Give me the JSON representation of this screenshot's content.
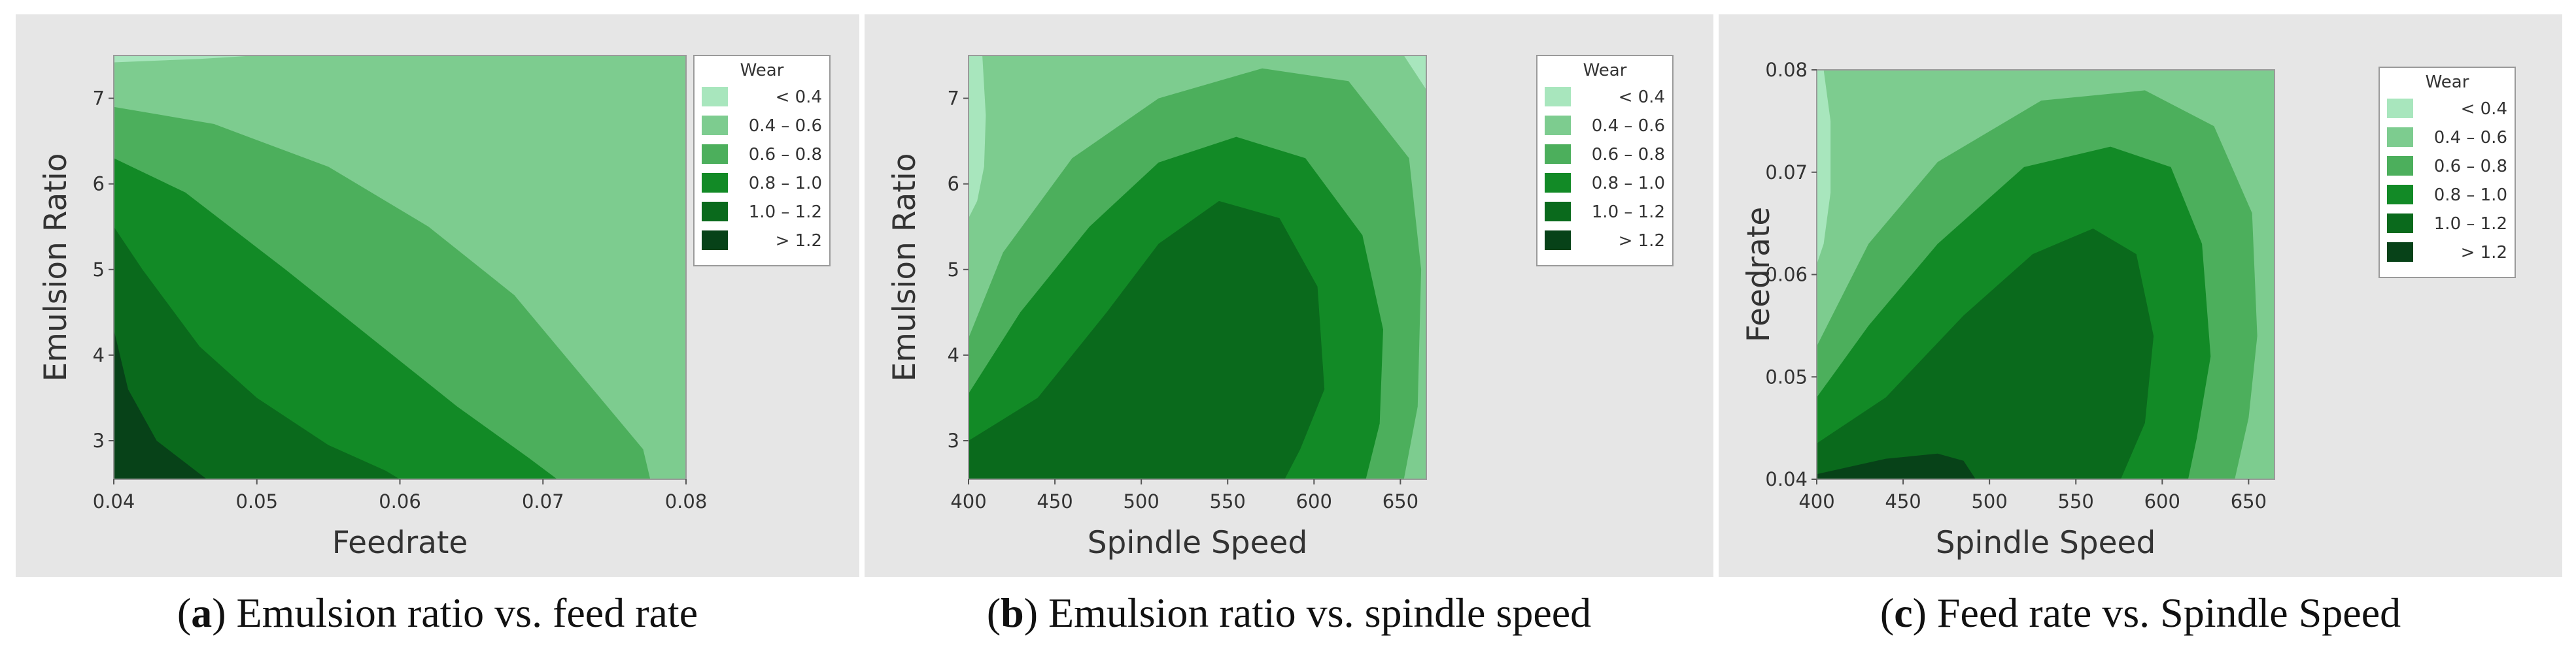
{
  "colors": {
    "lt04": "#a8e6bd",
    "b04_06": "#7dcc8f",
    "b06_08": "#4caf5c",
    "b08_10": "#128a26",
    "b10_12": "#0a6a1c",
    "gt12": "#074218",
    "panel_bg": "#e6e6e6"
  },
  "chart_data": [
    {
      "type": "contour",
      "panel_id": "a",
      "caption_letter": "a",
      "caption_text": ") Emulsion ratio vs. feed rate",
      "xlabel": "Feedrate",
      "ylabel": "Emulsion Ratio",
      "xlim": [
        0.04,
        0.08
      ],
      "ylim": [
        2.55,
        7.5
      ],
      "xticks": [
        "0.04",
        "0.05",
        "0.06",
        "0.07",
        "0.08"
      ],
      "yticks": [
        "3",
        "4",
        "5",
        "6",
        "7"
      ],
      "legend_title": "Wear",
      "legend_items": [
        "< 0.4",
        "0.4 – 0.6",
        "0.6 – 0.8",
        "0.8 – 1.0",
        "1.0 – 1.2",
        "> 1.2"
      ],
      "legend_placement": "right",
      "background_level": "0.4 – 0.6",
      "regions": [
        {
          "level": "< 0.4",
          "boundary": [
            [
              0.04,
              7.5
            ],
            [
              0.04,
              7.42
            ],
            [
              0.046,
              7.46
            ],
            [
              0.05,
              7.5
            ]
          ]
        },
        {
          "level": "0.6 – 0.8",
          "boundary": [
            [
              0.04,
              6.9
            ],
            [
              0.047,
              6.7
            ],
            [
              0.055,
              6.2
            ],
            [
              0.062,
              5.5
            ],
            [
              0.068,
              4.7
            ],
            [
              0.073,
              3.7
            ],
            [
              0.077,
              2.9
            ],
            [
              0.0775,
              2.55
            ],
            [
              0.04,
              2.55
            ]
          ]
        },
        {
          "level": "0.8 – 1.0",
          "boundary": [
            [
              0.04,
              6.3
            ],
            [
              0.045,
              5.9
            ],
            [
              0.052,
              5.0
            ],
            [
              0.058,
              4.2
            ],
            [
              0.064,
              3.4
            ],
            [
              0.069,
              2.8
            ],
            [
              0.071,
              2.55
            ],
            [
              0.04,
              2.55
            ]
          ]
        },
        {
          "level": "1.0 – 1.2",
          "boundary": [
            [
              0.04,
              5.5
            ],
            [
              0.042,
              5.0
            ],
            [
              0.046,
              4.1
            ],
            [
              0.05,
              3.5
            ],
            [
              0.055,
              2.95
            ],
            [
              0.059,
              2.65
            ],
            [
              0.06,
              2.55
            ],
            [
              0.04,
              2.55
            ]
          ]
        },
        {
          "level": "> 1.2",
          "boundary": [
            [
              0.04,
              4.3
            ],
            [
              0.041,
              3.6
            ],
            [
              0.043,
              3.0
            ],
            [
              0.0465,
              2.55
            ],
            [
              0.04,
              2.55
            ]
          ]
        }
      ]
    },
    {
      "type": "contour",
      "panel_id": "b",
      "caption_letter": "b",
      "caption_text": ") Emulsion ratio vs. spindle speed",
      "xlabel": "Spindle Speed",
      "ylabel": "Emulsion Ratio",
      "xlim": [
        400,
        665
      ],
      "ylim": [
        2.55,
        7.5
      ],
      "xticks": [
        "400",
        "450",
        "500",
        "550",
        "600",
        "650"
      ],
      "yticks": [
        "3",
        "4",
        "5",
        "6",
        "7"
      ],
      "legend_title": "Wear",
      "legend_items": [
        "< 0.4",
        "0.4 – 0.6",
        "0.6 – 0.8",
        "0.8 – 1.0",
        "1.0 – 1.2",
        "> 1.2"
      ],
      "legend_placement": "right",
      "background_level": "0.4 – 0.6",
      "regions": [
        {
          "level": "< 0.4",
          "boundary": [
            [
              400,
              7.5
            ],
            [
              408,
              7.5
            ],
            [
              410,
              6.8
            ],
            [
              409,
              6.2
            ],
            [
              405,
              5.8
            ],
            [
              400,
              5.6
            ]
          ]
        },
        {
          "level": "< 0.4",
          "boundary": [
            [
              652,
              7.5
            ],
            [
              665,
              7.5
            ],
            [
              665,
              7.1
            ]
          ]
        },
        {
          "level": "0.6 – 0.8",
          "boundary": [
            [
              400,
              4.2
            ],
            [
              420,
              5.2
            ],
            [
              460,
              6.3
            ],
            [
              510,
              7.0
            ],
            [
              570,
              7.35
            ],
            [
              620,
              7.2
            ],
            [
              655,
              6.3
            ],
            [
              662,
              5.0
            ],
            [
              660,
              3.4
            ],
            [
              652,
              2.55
            ],
            [
              400,
              2.55
            ]
          ]
        },
        {
          "level": "0.8 – 1.0",
          "boundary": [
            [
              400,
              3.55
            ],
            [
              430,
              4.5
            ],
            [
              470,
              5.5
            ],
            [
              510,
              6.25
            ],
            [
              555,
              6.55
            ],
            [
              595,
              6.3
            ],
            [
              628,
              5.4
            ],
            [
              640,
              4.3
            ],
            [
              638,
              3.2
            ],
            [
              630,
              2.55
            ],
            [
              400,
              2.55
            ]
          ]
        },
        {
          "level": "1.0 – 1.2",
          "boundary": [
            [
              400,
              3.0
            ],
            [
              440,
              3.5
            ],
            [
              480,
              4.5
            ],
            [
              510,
              5.3
            ],
            [
              545,
              5.8
            ],
            [
              580,
              5.6
            ],
            [
              602,
              4.8
            ],
            [
              606,
              3.6
            ],
            [
              592,
              2.9
            ],
            [
              583,
              2.55
            ],
            [
              400,
              2.55
            ]
          ]
        }
      ]
    },
    {
      "type": "contour",
      "panel_id": "c",
      "caption_letter": "c",
      "caption_text": ") Feed rate vs. Spindle Speed",
      "xlabel": "Spindle Speed",
      "ylabel": "Feedrate",
      "xlim": [
        400,
        665
      ],
      "ylim": [
        0.04,
        0.08
      ],
      "xticks": [
        "400",
        "450",
        "500",
        "550",
        "600",
        "650"
      ],
      "yticks": [
        "0.04",
        "0.05",
        "0.06",
        "0.07",
        "0.08"
      ],
      "legend_title": "Wear",
      "legend_items": [
        "< 0.4",
        "0.4 – 0.6",
        "0.6 – 0.8",
        "0.8 – 1.0",
        "1.0 – 1.2",
        "> 1.2"
      ],
      "legend_placement": "right",
      "background_level": "0.4 – 0.6",
      "regions": [
        {
          "level": "< 0.4",
          "boundary": [
            [
              400,
              0.08
            ],
            [
              404,
              0.08
            ],
            [
              408,
              0.075
            ],
            [
              408,
              0.068
            ],
            [
              404,
              0.063
            ],
            [
              400,
              0.061
            ]
          ]
        },
        {
          "level": "0.6 – 0.8",
          "boundary": [
            [
              400,
              0.053
            ],
            [
              430,
              0.063
            ],
            [
              470,
              0.071
            ],
            [
              530,
              0.077
            ],
            [
              590,
              0.078
            ],
            [
              630,
              0.0745
            ],
            [
              652,
              0.066
            ],
            [
              655,
              0.054
            ],
            [
              650,
              0.046
            ],
            [
              642,
              0.04
            ],
            [
              400,
              0.04
            ]
          ]
        },
        {
          "level": "0.8 – 1.0",
          "boundary": [
            [
              400,
              0.048
            ],
            [
              430,
              0.055
            ],
            [
              470,
              0.063
            ],
            [
              520,
              0.0705
            ],
            [
              570,
              0.0725
            ],
            [
              605,
              0.0705
            ],
            [
              623,
              0.063
            ],
            [
              628,
              0.052
            ],
            [
              620,
              0.044
            ],
            [
              615,
              0.04
            ],
            [
              400,
              0.04
            ]
          ]
        },
        {
          "level": "1.0 – 1.2",
          "boundary": [
            [
              400,
              0.0435
            ],
            [
              440,
              0.048
            ],
            [
              485,
              0.056
            ],
            [
              525,
              0.062
            ],
            [
              560,
              0.0645
            ],
            [
              585,
              0.062
            ],
            [
              595,
              0.054
            ],
            [
              590,
              0.0455
            ],
            [
              576,
              0.04
            ],
            [
              400,
              0.04
            ]
          ]
        },
        {
          "level": "> 1.2",
          "boundary": [
            [
              400,
              0.0405
            ],
            [
              440,
              0.042
            ],
            [
              470,
              0.0425
            ],
            [
              485,
              0.0418
            ],
            [
              492,
              0.04
            ],
            [
              400,
              0.04
            ]
          ]
        }
      ]
    }
  ]
}
